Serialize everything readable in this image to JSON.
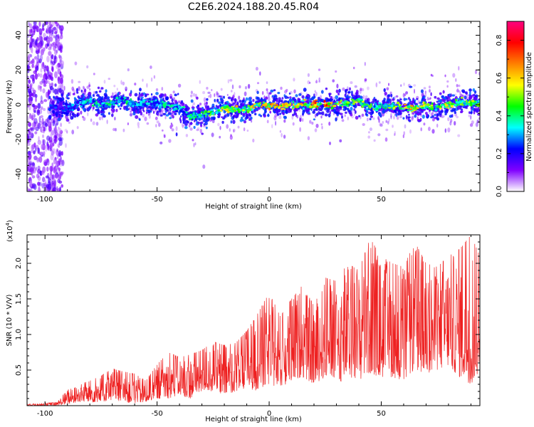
{
  "figure": {
    "title": "C2E6.2024.188.20.45.R04"
  },
  "chart_data": [
    {
      "type": "heatmap",
      "xlabel": "Height of straight line (km)",
      "ylabel": "Frequency (Hz)",
      "xlim": [
        -108,
        94
      ],
      "ylim": [
        -50,
        48
      ],
      "xticks": [
        -100,
        -50,
        0,
        50
      ],
      "xtick_labels": [
        "-100",
        "-50",
        "0",
        "50"
      ],
      "yticks": [
        -40,
        -20,
        0,
        20,
        40
      ],
      "ytick_labels": [
        "-40",
        "-20",
        "0",
        "20",
        "40"
      ],
      "colorbar": {
        "label": "Normalized spectral amplitude",
        "range": [
          0,
          0.9
        ],
        "ticks": [
          0,
          0.2,
          0.4,
          0.6,
          0.8
        ],
        "tick_labels": [
          "0.0",
          "0.2",
          "0.4",
          "0.6",
          "0.8"
        ],
        "colors": [
          "#ffffff",
          "#8000ff",
          "#0000ff",
          "#00ffff",
          "#00ff00",
          "#ffff00",
          "#ff8000",
          "#ff0000",
          "#ff0080"
        ]
      },
      "ridge": {
        "x": [
          -100,
          -95,
          -90,
          -85,
          -80,
          -75,
          -70,
          -65,
          -60,
          -55,
          -50,
          -45,
          -40,
          -35,
          -30,
          -25,
          -20,
          -15,
          -10,
          -5,
          0,
          5,
          10,
          15,
          20,
          25,
          30,
          35,
          40,
          45,
          50,
          55,
          60,
          65,
          70,
          75,
          80,
          85,
          90,
          94
        ],
        "frequency": [
          0,
          -2,
          -3,
          1,
          2,
          0,
          1,
          3,
          0,
          1,
          1,
          -1,
          -2,
          -7,
          -6,
          -4,
          -2,
          -3,
          -3,
          0,
          0,
          -1,
          -1,
          0,
          0,
          0,
          0,
          1,
          2,
          -2,
          -1,
          -1,
          -2,
          -2,
          -1,
          -1,
          0,
          1,
          1,
          1
        ],
        "amplitude": [
          0.15,
          0.25,
          0.3,
          0.35,
          0.42,
          0.45,
          0.42,
          0.45,
          0.4,
          0.4,
          0.42,
          0.42,
          0.38,
          0.45,
          0.5,
          0.55,
          0.65,
          0.7,
          0.6,
          0.7,
          0.75,
          0.7,
          0.7,
          0.72,
          0.78,
          0.85,
          0.72,
          0.55,
          0.6,
          0.55,
          0.52,
          0.55,
          0.7,
          0.65,
          0.62,
          0.6,
          0.65,
          0.58,
          0.55,
          0.5
        ]
      }
    },
    {
      "type": "line",
      "xlabel": "Height of straight line (km)",
      "ylabel": "SNR (10 * V/V)",
      "scale_label": "(x10",
      "scale_exp": "4",
      "scale_close": ")",
      "xlim": [
        -108,
        94
      ],
      "ylim": [
        0,
        2.4
      ],
      "xticks": [
        -100,
        -50,
        0,
        50
      ],
      "xtick_labels": [
        "-100",
        "-50",
        "0",
        "50"
      ],
      "yticks": [
        0.5,
        1.0,
        1.5,
        2.0
      ],
      "ytick_labels": [
        "0.5",
        "1.0",
        "1.5",
        "2.0"
      ],
      "color": "#ee2020",
      "envelope": {
        "x": [
          -108,
          -95,
          -90,
          -85,
          -80,
          -75,
          -70,
          -65,
          -60,
          -55,
          -50,
          -45,
          -40,
          -35,
          -30,
          -25,
          -20,
          -15,
          -10,
          -5,
          0,
          5,
          10,
          15,
          20,
          25,
          30,
          35,
          40,
          45,
          50,
          55,
          60,
          65,
          70,
          75,
          80,
          85,
          90,
          94
        ],
        "max": [
          0.02,
          0.05,
          0.22,
          0.3,
          0.35,
          0.42,
          0.52,
          0.48,
          0.45,
          0.35,
          0.58,
          0.75,
          0.68,
          0.72,
          0.78,
          0.9,
          0.85,
          0.88,
          1.05,
          1.3,
          1.6,
          1.25,
          1.5,
          1.7,
          1.4,
          1.8,
          1.75,
          2.0,
          1.9,
          2.35,
          2.1,
          2.0,
          1.95,
          2.3,
          2.0,
          1.95,
          2.1,
          2.2,
          2.4,
          2.1
        ],
        "min": [
          0.0,
          0.0,
          0.02,
          0.05,
          0.05,
          0.05,
          0.08,
          0.05,
          0.03,
          0.05,
          0.1,
          0.1,
          0.15,
          0.1,
          0.2,
          0.2,
          0.15,
          0.2,
          0.25,
          0.2,
          0.3,
          0.25,
          0.35,
          0.4,
          0.3,
          0.4,
          0.3,
          0.4,
          0.35,
          0.45,
          0.4,
          0.4,
          0.35,
          0.5,
          0.45,
          0.5,
          0.55,
          0.4,
          0.3,
          0.45
        ]
      }
    }
  ]
}
